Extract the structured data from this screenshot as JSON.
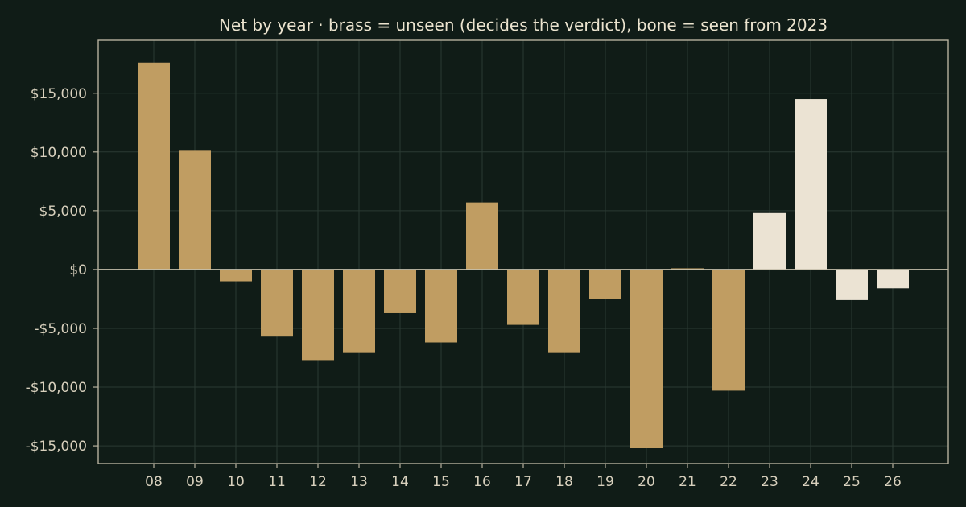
{
  "chart_data": {
    "type": "bar",
    "title": "Net by year  ·  brass = unseen (decides the verdict), bone = seen from 2023",
    "xlabel": "",
    "ylabel": "",
    "categories": [
      "08",
      "09",
      "10",
      "11",
      "12",
      "13",
      "14",
      "15",
      "16",
      "17",
      "18",
      "19",
      "20",
      "21",
      "22",
      "23",
      "24",
      "25",
      "26"
    ],
    "values": [
      17600,
      10100,
      -1000,
      -5700,
      -7700,
      -7100,
      -3700,
      -6200,
      5700,
      -4700,
      -7100,
      -2500,
      -15200,
      100,
      -10300,
      4800,
      14500,
      -2600,
      -1600
    ],
    "ylim": [
      -16500,
      19500
    ],
    "yticks": [
      -15000,
      -10000,
      -5000,
      0,
      5000,
      10000,
      15000
    ],
    "ytick_labels": [
      "-$15,000",
      "-$10,000",
      "-$5,000",
      "$0",
      "$5,000",
      "$10,000",
      "$15,000"
    ],
    "grid": true,
    "split_category": "23",
    "colors": {
      "brass": "#c09d62",
      "bone": "#ebe3d3",
      "background": "#101c17"
    }
  }
}
